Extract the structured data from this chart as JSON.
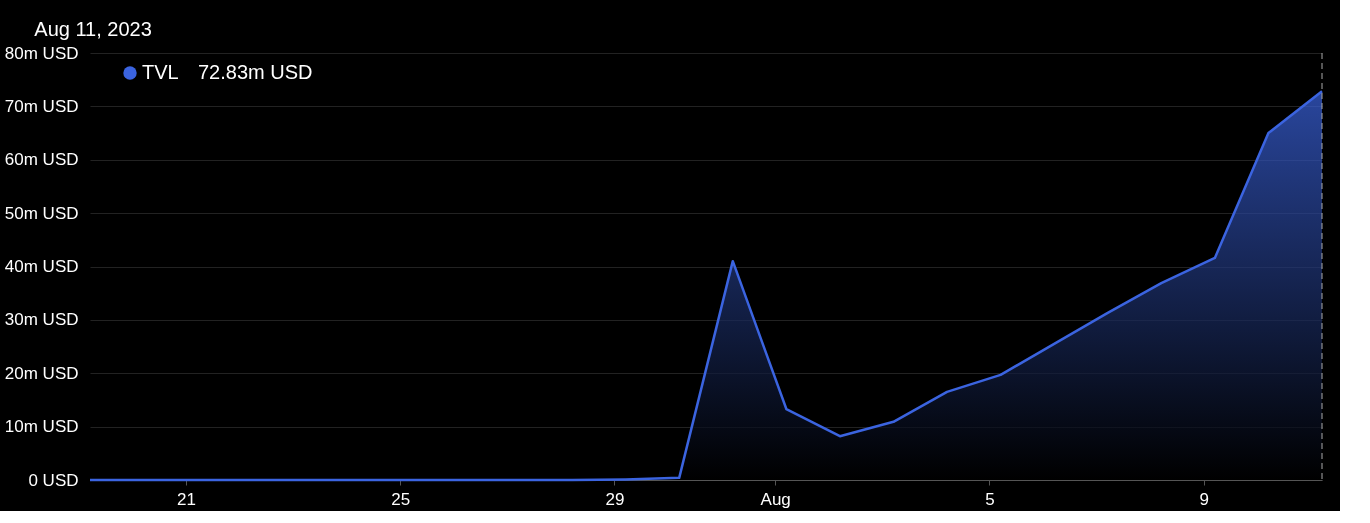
{
  "chart_data": {
    "type": "area",
    "title": "Aug 11, 2023",
    "x": [
      "2023-07-19T05:00",
      "2023-07-20T05:00",
      "2023-07-21T05:00",
      "2023-07-22T05:00",
      "2023-07-23T05:00",
      "2023-07-24T05:00",
      "2023-07-25T05:00",
      "2023-07-26T05:00",
      "2023-07-27T05:00",
      "2023-07-28T05:00",
      "2023-07-29T05:00",
      "2023-07-30T05:00",
      "2023-07-31T05:00",
      "2023-08-01T05:00",
      "2023-08-02T05:00",
      "2023-08-03T05:00",
      "2023-08-04T05:00",
      "2023-08-05T05:00",
      "2023-08-06T05:00",
      "2023-08-07T05:00",
      "2023-08-08T05:00",
      "2023-08-09T05:00",
      "2023-08-10T05:00",
      "2023-08-11T05:00"
    ],
    "series": [
      {
        "name": "TVL",
        "color": "#3b64e0",
        "values": [
          0,
          0,
          0,
          0,
          0,
          0,
          0,
          0,
          0,
          0,
          0.1,
          0.4,
          41.0,
          13.3,
          8.2,
          10.9,
          16.5,
          19.7,
          25.5,
          31.3,
          36.9,
          41.6,
          65.0,
          72.83
        ]
      }
    ],
    "xlim": [
      "2023-07-19T05:00",
      "2023-08-11T05:00"
    ],
    "xticks": [
      {
        "value": "2023-07-21",
        "label": "21"
      },
      {
        "value": "2023-07-25",
        "label": "25"
      },
      {
        "value": "2023-07-29",
        "label": "29"
      },
      {
        "value": "2023-08-01",
        "label": "Aug"
      },
      {
        "value": "2023-08-05",
        "label": "5"
      },
      {
        "value": "2023-08-09",
        "label": "9"
      }
    ],
    "ylim": [
      0,
      80
    ],
    "yticks": [
      {
        "value": 0,
        "label": "0 USD"
      },
      {
        "value": 10,
        "label": "10m USD"
      },
      {
        "value": 20,
        "label": "20m USD"
      },
      {
        "value": 30,
        "label": "30m USD"
      },
      {
        "value": 40,
        "label": "40m USD"
      },
      {
        "value": 50,
        "label": "50m USD"
      },
      {
        "value": 60,
        "label": "60m USD"
      },
      {
        "value": 70,
        "label": "70m USD"
      },
      {
        "value": 80,
        "label": "80m USD"
      }
    ],
    "annotations": [
      "72.83m USD"
    ],
    "ref_lines": [
      {
        "axis": "x",
        "value": "2023-08-11T05:00",
        "label": null,
        "color": "#aaaaaa",
        "line_style": "dashed"
      }
    ],
    "grid": "y",
    "legend": "top left",
    "line_style": "solid",
    "marker": "none"
  }
}
